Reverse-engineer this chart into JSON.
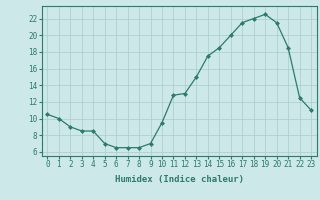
{
  "x": [
    0,
    1,
    2,
    3,
    4,
    5,
    6,
    7,
    8,
    9,
    10,
    11,
    12,
    13,
    14,
    15,
    16,
    17,
    18,
    19,
    20,
    21,
    22,
    23
  ],
  "y": [
    10.5,
    10.0,
    9.0,
    8.5,
    8.5,
    7.0,
    6.5,
    6.5,
    6.5,
    7.0,
    9.5,
    12.8,
    13.0,
    15.0,
    17.5,
    18.5,
    20.0,
    21.5,
    22.0,
    22.5,
    21.5,
    18.5,
    12.5,
    11.0
  ],
  "title": "",
  "xlabel": "Humidex (Indice chaleur)",
  "ylabel": "",
  "xlim": [
    -0.5,
    23.5
  ],
  "ylim": [
    5.5,
    23.5
  ],
  "yticks": [
    6,
    8,
    10,
    12,
    14,
    16,
    18,
    20,
    22
  ],
  "xticks": [
    0,
    1,
    2,
    3,
    4,
    5,
    6,
    7,
    8,
    9,
    10,
    11,
    12,
    13,
    14,
    15,
    16,
    17,
    18,
    19,
    20,
    21,
    22,
    23
  ],
  "line_color": "#2d7a6e",
  "marker": "D",
  "marker_size": 2.0,
  "bg_color": "#cce8e8",
  "grid_color": "#aacccc",
  "axis_color": "#2d7a6e",
  "tick_fontsize": 5.5,
  "xlabel_fontsize": 6.5
}
